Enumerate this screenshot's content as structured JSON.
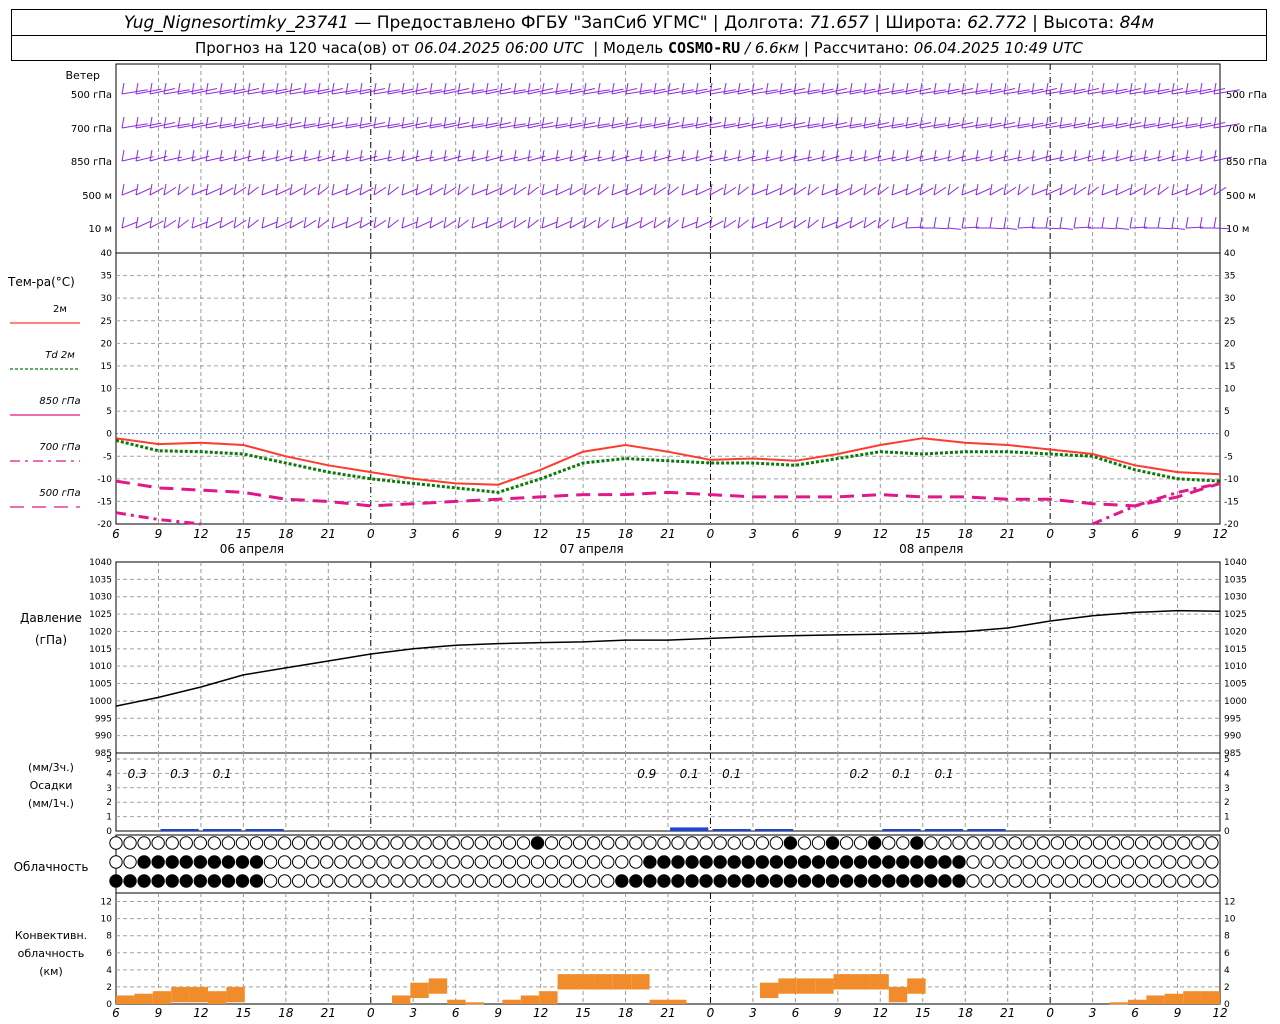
{
  "header": {
    "station": "Yug_Nignesortimky_23741",
    "provided": "— Предоставлено ФГБУ \"ЗапСиб УГМС\"",
    "lon_label": "Долгота:",
    "lon": "71.657",
    "lat_label": "Широта:",
    "lat": "62.772",
    "alt_label": "Высота:",
    "alt": "84м",
    "forecast_label": "Прогноз на 120 часа(ов) от",
    "forecast_start": "06.04.2025 06:00 UTC",
    "model_label": "Модель",
    "model": "COSMO-RU",
    "model_res": "/ 6.6км",
    "computed_label": "Рассчитано:",
    "computed": "06.04.2025 10:49 UTC"
  },
  "wind": {
    "title": "Ветер",
    "levels": [
      "500 гПа",
      "700 гПа",
      "850 гПа",
      "500 м",
      "10   м"
    ],
    "color": "#8a2be2"
  },
  "temp": {
    "title": "Тем-ра(°C)",
    "yticks": [
      "40",
      "35",
      "30",
      "25",
      "20",
      "15",
      "10",
      "5",
      "0",
      "-5",
      "-10",
      "-15",
      "-20"
    ],
    "legend": [
      {
        "label": "2м",
        "color": "#ff3b30",
        "style": "solid"
      },
      {
        "label": "Td  2м",
        "color": "#0a7a0a",
        "style": "dotted"
      },
      {
        "label": "850 гПа",
        "color": "#e0188c",
        "style": "solid"
      },
      {
        "label": "700 гПа",
        "color": "#e0188c",
        "style": "dashdot"
      },
      {
        "label": "500 гПа",
        "color": "#e0188c",
        "style": "dashed"
      }
    ]
  },
  "xaxis": {
    "hours": [
      "6",
      "9",
      "12",
      "15",
      "18",
      "21",
      "0",
      "3",
      "6",
      "9",
      "12",
      "15",
      "18",
      "21",
      "0",
      "3",
      "6",
      "9",
      "12",
      "15",
      "18",
      "21",
      "0",
      "3",
      "6",
      "9",
      "12"
    ],
    "dates": [
      "06 апреля",
      "07 апреля",
      "08 апреля"
    ]
  },
  "pressure": {
    "title": "Давление",
    "unit": "(гПа)",
    "yticks": [
      "1040",
      "1035",
      "1030",
      "1025",
      "1020",
      "1015",
      "1010",
      "1005",
      "1000",
      "995",
      "990",
      "985"
    ]
  },
  "precip": {
    "title1": "(мм/3ч.)",
    "title2": "Осадки",
    "title3": "(мм/1ч.)",
    "yticks": [
      "5",
      "4",
      "3",
      "2",
      "1",
      "0"
    ],
    "labels": [
      {
        "text": "0.3",
        "step": 1
      },
      {
        "text": "0.3",
        "step": 2
      },
      {
        "text": "0.1",
        "step": 3
      },
      {
        "text": "0.9",
        "step": 13
      },
      {
        "text": "0.1",
        "step": 14
      },
      {
        "text": "0.1",
        "step": 15
      },
      {
        "text": "0.2",
        "step": 18
      },
      {
        "text": "0.1",
        "step": 19
      },
      {
        "text": "0.1",
        "step": 20
      }
    ],
    "color": "#1f44d6"
  },
  "clouds": {
    "title": "Облачность"
  },
  "conv": {
    "title1": "Конвективн.",
    "title2": "облачность",
    "title3": "(км)",
    "yticks": [
      "12",
      "10",
      "8",
      "6",
      "4",
      "2",
      "0"
    ],
    "color": "#f08c2c"
  },
  "chart_data": {
    "type": "line",
    "x_hours_from_start": [
      0,
      3,
      6,
      9,
      12,
      15,
      18,
      21,
      24,
      27,
      30,
      33,
      36,
      39,
      42,
      45,
      48,
      51,
      54,
      57,
      60,
      63,
      66,
      69,
      72,
      75,
      78
    ],
    "series": [
      {
        "name": "2м",
        "unit": "°C",
        "values": [
          -1,
          -2.3,
          -2,
          -2.5,
          -5,
          -7,
          -8.5,
          -10,
          -11,
          -11.3,
          -8,
          -4,
          -2.5,
          -4,
          -5.8,
          -5.5,
          -6,
          -4.5,
          -2.5,
          -1,
          -2,
          -2.5,
          -3.5,
          -4.5,
          -7,
          -8.5,
          -9
        ]
      },
      {
        "name": "Td  2м",
        "unit": "°C",
        "values": [
          -1.5,
          -3.8,
          -4,
          -4.5,
          -6.5,
          -8.5,
          -10,
          -11,
          -12,
          -13,
          -10,
          -6.5,
          -5.5,
          -6,
          -6.5,
          -6.5,
          -7,
          -5.5,
          -4,
          -4.5,
          -4,
          -4,
          -4.5,
          -5,
          -8,
          -10,
          -10.5
        ]
      },
      {
        "name": "850 гПа",
        "unit": "°C",
        "values": [
          -10.5,
          -12,
          -12.5,
          -13,
          -14.5,
          -15,
          -16,
          -15.5,
          -15,
          -14.5,
          -14,
          -13.5,
          -13.5,
          -13,
          -13.5,
          -14,
          -14,
          -14,
          -13.5,
          -14,
          -14,
          -14.5,
          -14.5,
          -15.5,
          -16,
          -14,
          -11
        ]
      },
      {
        "name": "700 гПа",
        "unit": "°C",
        "values": [
          -17.5,
          -19,
          -21,
          null,
          null,
          null,
          null,
          null,
          null,
          null,
          null,
          null,
          null,
          null,
          null,
          null,
          null,
          null,
          null,
          null,
          null,
          null,
          null,
          -20,
          -16,
          -13,
          -11
        ]
      },
      {
        "name": "Давление",
        "unit": "гПа",
        "values": [
          998.5,
          1001,
          1004,
          1007.5,
          1009.5,
          1011.5,
          1013.5,
          1015,
          1016,
          1016.5,
          1016.8,
          1017,
          1017.5,
          1017.5,
          1018,
          1018.5,
          1018.8,
          1019,
          1019.2,
          1019.5,
          1020,
          1021,
          1023,
          1024.5,
          1025.5,
          1026,
          1025.8
        ]
      }
    ],
    "precip_mm_3h": [
      0,
      0.3,
      0.3,
      0.1,
      0,
      0,
      0,
      0,
      0,
      0,
      0,
      0,
      0,
      0.9,
      0.1,
      0.1,
      0,
      0,
      0.2,
      0.1,
      0.1,
      0,
      0,
      0,
      0,
      0,
      0
    ],
    "convective_cloud_km": [
      1,
      1.2,
      1.5,
      2,
      2,
      1.5,
      2,
      0,
      0,
      0,
      0,
      0,
      0,
      0,
      0,
      1,
      2.5,
      3,
      0.5,
      0.2,
      0,
      0.5,
      1,
      1.5,
      3.5,
      3.5,
      3.5,
      3.5,
      3.5,
      0.5,
      0.5,
      0,
      0,
      0,
      0,
      2.5,
      3,
      3,
      3,
      3.5,
      3.5,
      3.5,
      2,
      3,
      0,
      0,
      0,
      0,
      0,
      0,
      0,
      0,
      0,
      0,
      0.2,
      0.5,
      1,
      1.2,
      1.5,
      1.5
    ],
    "temp_ylim": [
      -20,
      40
    ],
    "pressure_ylim": [
      985,
      1040
    ],
    "precip_ylim": [
      0,
      5
    ],
    "conv_ylim": [
      0,
      13
    ],
    "grid": true
  }
}
